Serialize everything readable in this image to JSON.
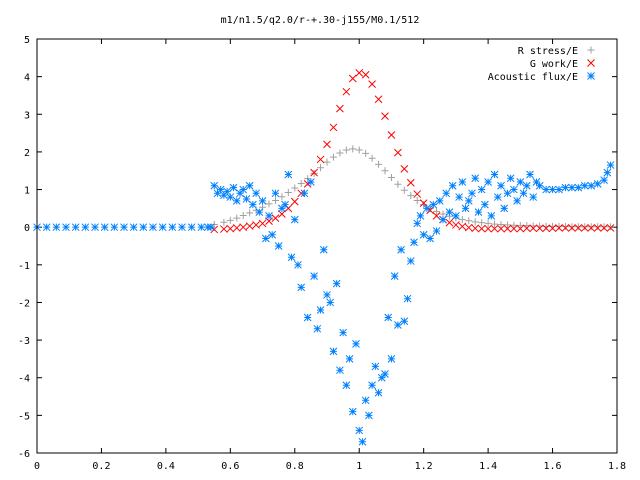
{
  "chart_data": {
    "type": "scatter",
    "title": "m1/n1.5/q2.0/r-+.30-j155/M0.1/512",
    "xlabel": "",
    "ylabel": "",
    "xlim": [
      0,
      1.8
    ],
    "ylim": [
      -6,
      5
    ],
    "xticks": [
      "0",
      "0.2",
      "0.4",
      "0.6",
      "0.8",
      "1",
      "1.2",
      "1.4",
      "1.6",
      "1.8"
    ],
    "yticks": [
      "5",
      "4",
      "3",
      "2",
      "1",
      "0",
      "-1",
      "-2",
      "-3",
      "-4",
      "-5",
      "-6"
    ],
    "legend_position": "top-right",
    "grid": false,
    "series": [
      {
        "name": "R stress/E",
        "marker": "+",
        "color": "#a0a0a0",
        "x": [
          0.55,
          0.58,
          0.6,
          0.62,
          0.64,
          0.66,
          0.68,
          0.7,
          0.72,
          0.74,
          0.76,
          0.78,
          0.8,
          0.82,
          0.84,
          0.86,
          0.88,
          0.9,
          0.92,
          0.94,
          0.96,
          0.98,
          1.0,
          1.02,
          1.04,
          1.06,
          1.08,
          1.1,
          1.12,
          1.14,
          1.16,
          1.18,
          1.2,
          1.22,
          1.24,
          1.26,
          1.28,
          1.3,
          1.32,
          1.34,
          1.36,
          1.38,
          1.4,
          1.42,
          1.44,
          1.46,
          1.48,
          1.5,
          1.52,
          1.54,
          1.56,
          1.58,
          1.6,
          1.62,
          1.64,
          1.66,
          1.68,
          1.7,
          1.72,
          1.74,
          1.76,
          1.78
        ],
        "y": [
          0.07,
          0.13,
          0.18,
          0.24,
          0.31,
          0.38,
          0.45,
          0.53,
          0.62,
          0.71,
          0.81,
          0.92,
          1.04,
          1.16,
          1.29,
          1.43,
          1.58,
          1.73,
          1.86,
          1.97,
          2.05,
          2.08,
          2.05,
          1.96,
          1.83,
          1.67,
          1.5,
          1.32,
          1.14,
          0.98,
          0.84,
          0.71,
          0.6,
          0.5,
          0.42,
          0.35,
          0.29,
          0.24,
          0.2,
          0.17,
          0.14,
          0.12,
          0.1,
          0.08,
          0.07,
          0.06,
          0.05,
          0.04,
          0.04,
          0.03,
          0.03,
          0.02,
          0.02,
          0.02,
          0.02,
          0.01,
          0.01,
          0.01,
          0.01,
          0.01,
          0.01,
          0.01
        ]
      },
      {
        "name": "G work/E",
        "marker": "x",
        "color": "#ff0000",
        "x": [
          0.55,
          0.58,
          0.6,
          0.62,
          0.64,
          0.66,
          0.68,
          0.7,
          0.72,
          0.74,
          0.76,
          0.78,
          0.8,
          0.82,
          0.84,
          0.86,
          0.88,
          0.9,
          0.92,
          0.94,
          0.96,
          0.98,
          1.0,
          1.02,
          1.04,
          1.06,
          1.08,
          1.1,
          1.12,
          1.14,
          1.16,
          1.18,
          1.2,
          1.22,
          1.24,
          1.26,
          1.28,
          1.3,
          1.32,
          1.34,
          1.36,
          1.38,
          1.4,
          1.42,
          1.44,
          1.46,
          1.48,
          1.5,
          1.52,
          1.54,
          1.56,
          1.58,
          1.6,
          1.62,
          1.64,
          1.66,
          1.68,
          1.7,
          1.72,
          1.74,
          1.76,
          1.78
        ],
        "y": [
          -0.06,
          -0.05,
          -0.04,
          -0.02,
          0.0,
          0.03,
          0.06,
          0.1,
          0.16,
          0.24,
          0.35,
          0.5,
          0.68,
          0.9,
          1.15,
          1.45,
          1.8,
          2.2,
          2.65,
          3.15,
          3.6,
          3.95,
          4.1,
          4.05,
          3.8,
          3.4,
          2.95,
          2.45,
          1.98,
          1.55,
          1.18,
          0.88,
          0.64,
          0.45,
          0.3,
          0.2,
          0.12,
          0.06,
          0.02,
          -0.01,
          -0.03,
          -0.04,
          -0.04,
          -0.04,
          -0.04,
          -0.04,
          -0.04,
          -0.04,
          -0.03,
          -0.03,
          -0.03,
          -0.03,
          -0.03,
          -0.02,
          -0.02,
          -0.02,
          -0.02,
          -0.02,
          -0.02,
          -0.02,
          -0.02,
          -0.02
        ]
      },
      {
        "name": "Acoustic flux/E",
        "marker": "*",
        "color": "#0080ff",
        "x": [
          0.0,
          0.03,
          0.06,
          0.09,
          0.12,
          0.15,
          0.18,
          0.21,
          0.24,
          0.27,
          0.3,
          0.33,
          0.36,
          0.39,
          0.42,
          0.45,
          0.48,
          0.51,
          0.53,
          0.54,
          0.55,
          0.56,
          0.57,
          0.58,
          0.59,
          0.6,
          0.61,
          0.62,
          0.63,
          0.64,
          0.65,
          0.66,
          0.67,
          0.68,
          0.69,
          0.7,
          0.71,
          0.72,
          0.73,
          0.74,
          0.75,
          0.76,
          0.77,
          0.78,
          0.79,
          0.8,
          0.81,
          0.82,
          0.83,
          0.84,
          0.85,
          0.86,
          0.87,
          0.88,
          0.89,
          0.9,
          0.91,
          0.92,
          0.93,
          0.94,
          0.95,
          0.96,
          0.97,
          0.98,
          0.99,
          1.0,
          1.01,
          1.02,
          1.03,
          1.04,
          1.05,
          1.06,
          1.07,
          1.08,
          1.09,
          1.1,
          1.11,
          1.12,
          1.13,
          1.14,
          1.15,
          1.16,
          1.17,
          1.18,
          1.19,
          1.2,
          1.21,
          1.22,
          1.23,
          1.24,
          1.25,
          1.26,
          1.27,
          1.28,
          1.29,
          1.3,
          1.31,
          1.32,
          1.33,
          1.34,
          1.35,
          1.36,
          1.37,
          1.38,
          1.39,
          1.4,
          1.41,
          1.42,
          1.43,
          1.44,
          1.45,
          1.46,
          1.47,
          1.48,
          1.49,
          1.5,
          1.51,
          1.52,
          1.53,
          1.54,
          1.55,
          1.56,
          1.58,
          1.6,
          1.62,
          1.64,
          1.66,
          1.68,
          1.7,
          1.72,
          1.74,
          1.76,
          1.77,
          1.78
        ],
        "y": [
          0.0,
          0.0,
          0.0,
          0.0,
          0.0,
          0.0,
          0.0,
          0.0,
          0.0,
          0.0,
          0.0,
          0.0,
          0.0,
          0.0,
          0.0,
          0.0,
          0.0,
          0.0,
          0.0,
          0.0,
          1.1,
          0.9,
          1.0,
          0.85,
          0.95,
          0.8,
          1.05,
          0.7,
          0.9,
          1.0,
          0.75,
          1.1,
          0.6,
          0.9,
          0.4,
          0.7,
          -0.3,
          0.3,
          -0.2,
          0.9,
          -0.5,
          0.5,
          0.6,
          1.4,
          -0.8,
          0.2,
          -1.0,
          -1.6,
          0.9,
          -2.4,
          1.2,
          -1.3,
          -2.7,
          -2.2,
          -0.6,
          -1.8,
          -2.0,
          -3.3,
          -1.5,
          -3.8,
          -2.8,
          -4.2,
          -3.5,
          -4.9,
          -3.1,
          -5.4,
          -5.7,
          -4.6,
          -5.0,
          -4.2,
          -3.7,
          -4.4,
          -4.0,
          -3.9,
          -2.4,
          -3.5,
          -1.3,
          -2.6,
          -0.6,
          -2.5,
          -1.9,
          -0.9,
          -0.4,
          0.1,
          0.3,
          -0.2,
          0.5,
          -0.3,
          0.6,
          -0.1,
          0.7,
          0.2,
          0.9,
          0.4,
          1.1,
          0.3,
          0.8,
          1.2,
          0.5,
          0.7,
          0.9,
          1.3,
          0.4,
          1.0,
          0.6,
          1.2,
          0.3,
          1.4,
          0.8,
          1.1,
          0.5,
          0.9,
          1.3,
          1.0,
          0.7,
          1.2,
          0.9,
          1.1,
          1.4,
          0.8,
          1.2,
          1.1,
          1.0,
          1.0,
          1.0,
          1.05,
          1.05,
          1.05,
          1.1,
          1.1,
          1.15,
          1.25,
          1.45,
          1.65
        ]
      }
    ]
  }
}
